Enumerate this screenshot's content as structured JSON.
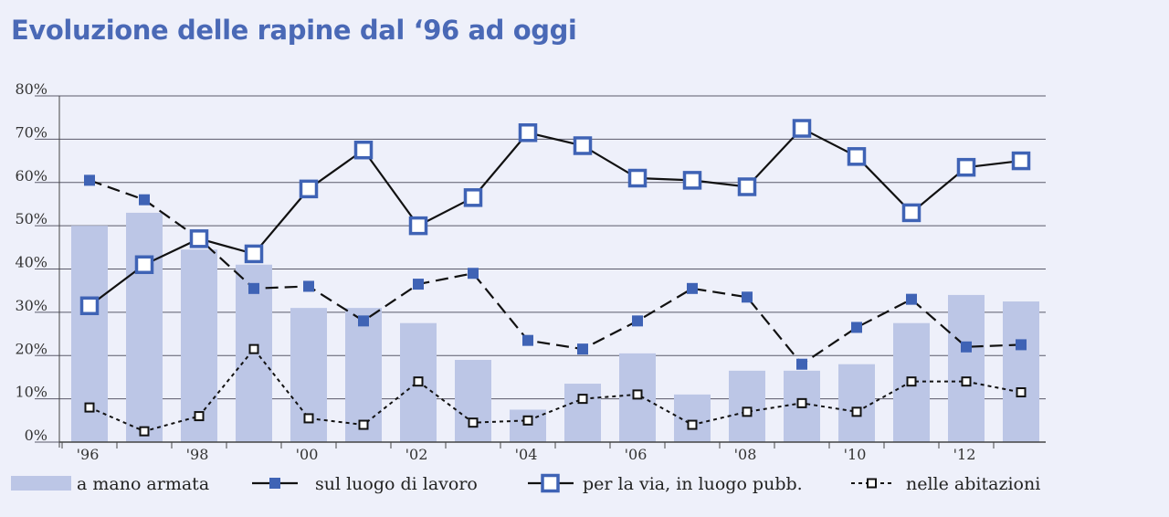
{
  "title": "Evoluzione delle rapine dal ‘96 ad oggi",
  "colors": {
    "background": "#eef0fa",
    "bars": "#bcc6e6",
    "blue": "#3f63b5",
    "line": "#111111",
    "grid": "#5a5a6a",
    "title": "#4a69b6"
  },
  "chart_data": {
    "type": "bar+line",
    "title": "Evoluzione delle rapine dal ‘96 ad oggi",
    "years": [
      "1996",
      "1997",
      "1998",
      "1999",
      "2000",
      "2001",
      "2002",
      "2003",
      "2004",
      "2005",
      "2006",
      "2007",
      "2008",
      "2009",
      "2010",
      "2011",
      "2012",
      "2013"
    ],
    "x_tick_labels": [
      "'96",
      "",
      "'98",
      "",
      "'00",
      "",
      "'02",
      "",
      "'04",
      "",
      "'06",
      "",
      "'08",
      "",
      "'10",
      "",
      "'12",
      ""
    ],
    "y_tick_labels": [
      "0%",
      "10%",
      "20%",
      "30%",
      "40%",
      "50%",
      "60%",
      "70%",
      "80%"
    ],
    "ylim": [
      0,
      80
    ],
    "grid": true,
    "legend_position": "bottom",
    "series": [
      {
        "name": "a mano armata",
        "type": "bar",
        "values": [
          50,
          53,
          44.5,
          41,
          31,
          31,
          27.5,
          19,
          7.5,
          13.5,
          20.5,
          11,
          16.5,
          16.5,
          18,
          27.5,
          34,
          32.5
        ]
      },
      {
        "name": "sul luogo di lavoro",
        "type": "line",
        "style": "dashed",
        "marker": "filled-square",
        "values": [
          60.5,
          56,
          47,
          35.5,
          36,
          28,
          36.5,
          39,
          23.5,
          21.5,
          28,
          35.5,
          33.5,
          18,
          26.5,
          33,
          22,
          22.5
        ]
      },
      {
        "name": "per la via, in luogo pubb.",
        "type": "line",
        "style": "solid",
        "marker": "open-square-large",
        "values": [
          31.5,
          41,
          47,
          43.5,
          58.5,
          67.5,
          50,
          56.5,
          71.5,
          68.5,
          61,
          60.5,
          59,
          72.5,
          66,
          53,
          63.5,
          65
        ]
      },
      {
        "name": "nelle abitazioni",
        "type": "line",
        "style": "dotted",
        "marker": "open-square-small",
        "values": [
          8,
          2.5,
          6,
          21.5,
          5.5,
          4,
          14,
          4.5,
          5,
          10,
          11,
          4,
          7,
          9,
          7,
          14,
          14,
          11.5
        ]
      }
    ]
  }
}
